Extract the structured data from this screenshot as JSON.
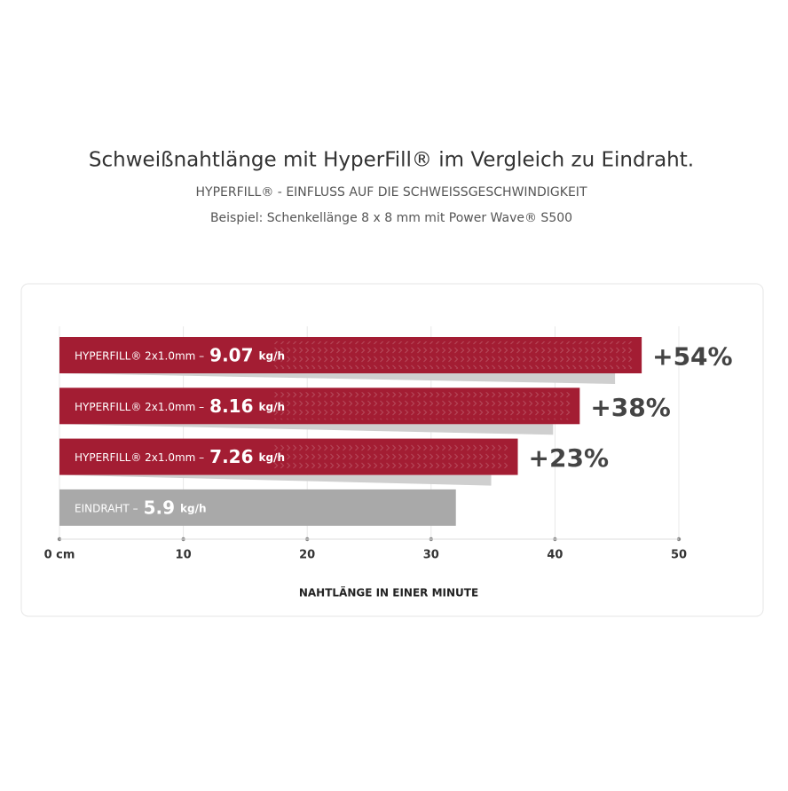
{
  "chart_data": {
    "type": "hbar",
    "title": "Schweißnahtlänge mit HyperFill® im Vergleich zu Eindraht.",
    "subtitle": "HYPERFILL® - EINFLUSS AUF DIE SCHWEISSGESCHWINDIGKEIT",
    "note": "Beispiel: Schenkellänge 8 x 8 mm mit Power Wave® S500",
    "categories": [
      "HYPERFILL® 2x1.0mm –",
      "HYPERFILL® 2x1.0mm –",
      "HYPERFILL® 2x1.0mm –",
      "EINDRAHT –"
    ],
    "values": [
      47,
      42,
      37,
      32
    ],
    "colors": [
      "#a31d33",
      "#a31d33",
      "#a31d33",
      "#a9a9a9"
    ],
    "rates": [
      9.07,
      8.16,
      7.26,
      5.9
    ],
    "rate_unit": "kg/h",
    "gains": [
      {
        "value": 54,
        "label": "+54%"
      },
      {
        "value": 38,
        "label": "+38%"
      },
      {
        "value": 23,
        "label": "+23%"
      }
    ],
    "xlim": [
      0,
      50
    ],
    "xticks": [
      {
        "value": 0,
        "label": "0 cm"
      },
      10,
      20,
      30,
      40,
      50
    ],
    "xlabel": "NAHTLÄNGE IN EINER MINUTE",
    "grid": true
  }
}
